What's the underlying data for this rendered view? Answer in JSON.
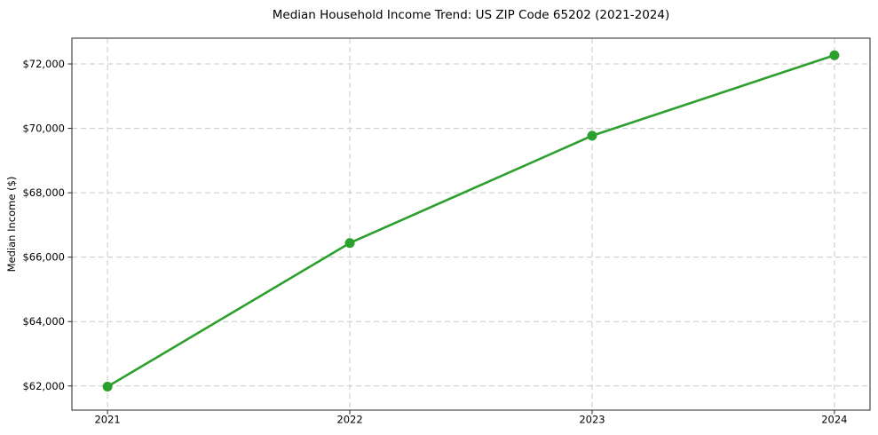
{
  "figure": {
    "background": "#ffffff"
  },
  "chart_data": {
    "type": "line",
    "title": "Median Household Income Trend: US ZIP Code 65202 (2021-2024)",
    "xlabel": "",
    "ylabel": "Median Income ($)",
    "categories": [
      "2021",
      "2022",
      "2023",
      "2024"
    ],
    "x": [
      2021,
      2022,
      2023,
      2024
    ],
    "series": [
      {
        "name": "Median Household Income",
        "values": [
          61980,
          66440,
          69770,
          72270
        ],
        "color": "#2ca02c",
        "marker": "circle"
      }
    ],
    "xlim": [
      2020.853,
      2024.147
    ],
    "ylim": [
      61250,
      72800
    ],
    "xticks": [
      {
        "value": 2021,
        "label": "2021"
      },
      {
        "value": 2022,
        "label": "2022"
      },
      {
        "value": 2023,
        "label": "2023"
      },
      {
        "value": 2024,
        "label": "2024"
      }
    ],
    "yticks": [
      {
        "value": 62000,
        "label": "$62,000"
      },
      {
        "value": 64000,
        "label": "$64,000"
      },
      {
        "value": 66000,
        "label": "$66,000"
      },
      {
        "value": 68000,
        "label": "$68,000"
      },
      {
        "value": 70000,
        "label": "$70,000"
      },
      {
        "value": 72000,
        "label": "$72,000"
      }
    ],
    "grid": {
      "show": true,
      "style": "dashed",
      "color": "#c9c9c9"
    },
    "legend": {
      "show": false
    },
    "colors": {
      "line": "#2ca02c",
      "marker": "#2ca02c",
      "spine": "#262626",
      "tick": "#262626",
      "text": "#000000",
      "background": "#ffffff"
    }
  }
}
